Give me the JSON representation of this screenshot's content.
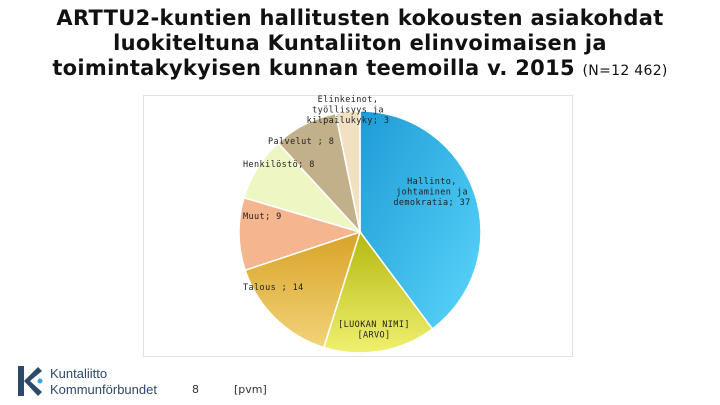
{
  "title": {
    "line1": "ARTTU2-kuntien hallitusten kokousten asiakohdat",
    "line2": "luokiteltuna Kuntaliiton elinvoimaisen ja",
    "line3": "toimintakykyisen kunnan teemoilla v. 2015",
    "n_label": "(N=12 462)"
  },
  "footer": {
    "page_number": "8",
    "date_placeholder": "[pvm]"
  },
  "logo": {
    "line1": "Kuntaliitto",
    "line2": "Kommunförbundet",
    "icon": "kuntaliitto-logo-icon"
  },
  "colors": {
    "hallinto": "#2fb4e6",
    "luokan": "#c9cc1a",
    "talous": "#e0b33a",
    "muut": "#f4b58f",
    "henkilosto": "#eef7c4",
    "palvelut": "#c2b08a",
    "elinkeinot": "#f2e0c2",
    "brand": "#2c4a6b"
  },
  "chart_data": {
    "type": "pie",
    "slices": [
      {
        "label": "Hallinto, johtaminen ja demokratia; 37",
        "value": 37
      },
      {
        "label": "[LUOKAN NIMI] [ARVO]",
        "value": 14
      },
      {
        "label": "Talous ; 14",
        "value": 14
      },
      {
        "label": "Muut; 9",
        "value": 9
      },
      {
        "label": "Henkilöstö; 8",
        "value": 8
      },
      {
        "label": "Palvelut ; 8",
        "value": 8
      },
      {
        "label": "Elinkeinot, työllisyys ja kilpailukyky; 3",
        "value": 3
      }
    ]
  }
}
